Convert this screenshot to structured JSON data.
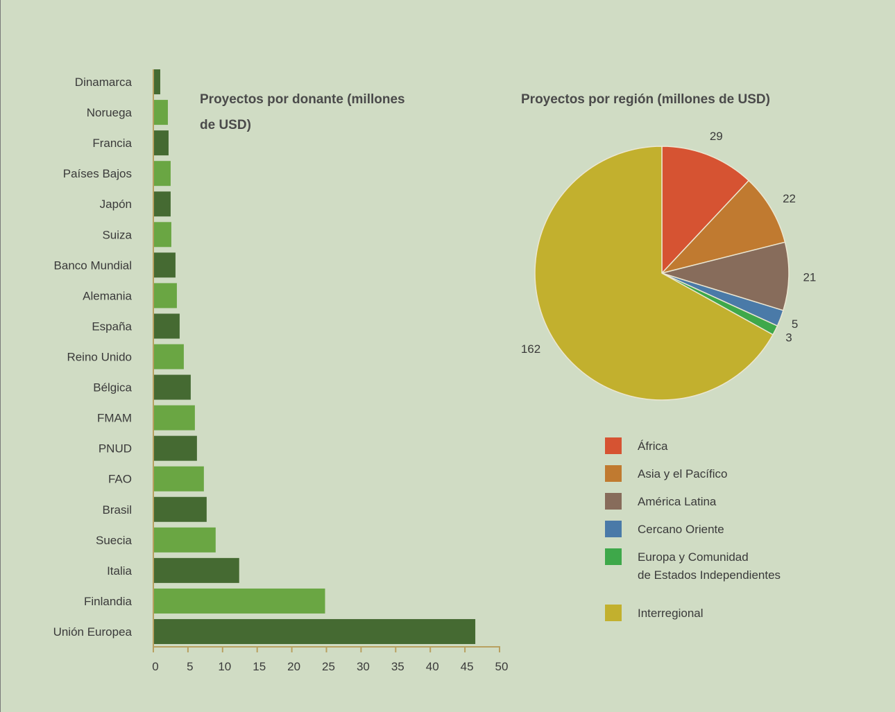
{
  "chart_data": [
    {
      "type": "bar",
      "orientation": "horizontal",
      "title_lines": [
        "Proyectos por donante (millones",
        "de USD)"
      ],
      "categories": [
        "Dinamarca",
        "Noruega",
        "Francia",
        "Países Bajos",
        "Japón",
        "Suiza",
        "Banco Mundial",
        "Alemania",
        "España",
        "Reino Unido",
        "Bélgica",
        "FMAM",
        "PNUD",
        "FAO",
        "Brasil",
        "Suecia",
        "Italia",
        "Finlandia",
        "Unión Europea"
      ],
      "values": [
        1.0,
        2.1,
        2.2,
        2.5,
        2.5,
        2.6,
        3.2,
        3.4,
        3.8,
        4.4,
        5.4,
        6.0,
        6.3,
        7.3,
        7.7,
        9.0,
        12.4,
        24.8,
        46.5
      ],
      "xlim": [
        0,
        50
      ],
      "xticks": [
        "0",
        "5",
        "10",
        "15",
        "20",
        "25",
        "30",
        "35",
        "40",
        "45",
        "50"
      ],
      "colors": [
        "#456a32",
        "#6aa643"
      ]
    },
    {
      "type": "pie",
      "title": "Proyectos por región (millones de USD)",
      "slices": [
        {
          "label": "África",
          "value": 29,
          "value_label": "29",
          "color": "#d65332"
        },
        {
          "label": "Asia y el Pacífico",
          "value": 22,
          "value_label": "22",
          "color": "#c07a30"
        },
        {
          "label": "América Latina",
          "value": 21,
          "value_label": "21",
          "color": "#876c5b"
        },
        {
          "label": "Cercano Oriente",
          "value": 5,
          "value_label": "5",
          "color": "#4a7aa8"
        },
        {
          "label": "Europa y Comunidad\nde Estados Independientes",
          "value": 3,
          "value_label": "3",
          "color": "#3ea84a"
        },
        {
          "label": "Interregional",
          "value": 162,
          "value_label": "162",
          "color": "#c2b02e"
        }
      ],
      "legend_placement": "bottom"
    }
  ]
}
